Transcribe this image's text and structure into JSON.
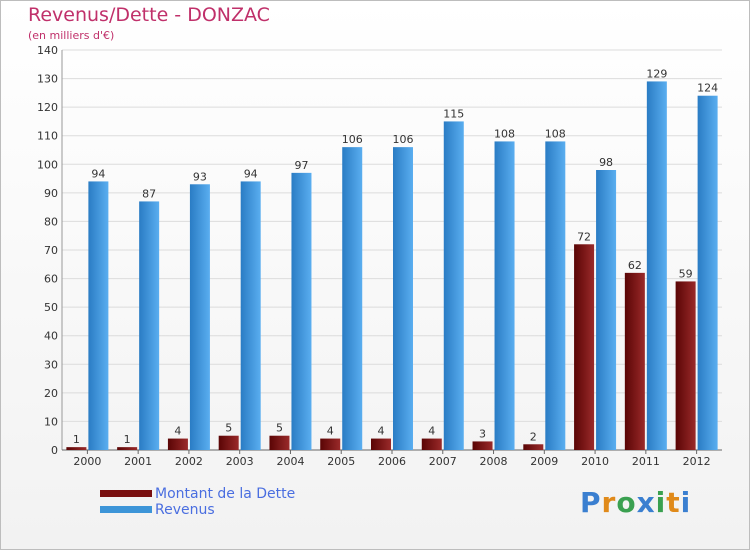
{
  "title": "Revenus/Dette - DONZAC",
  "subtitle": "(en milliers d'€)",
  "legend": {
    "items": [
      {
        "label": "Montant de la Dette",
        "color": "#7a1010"
      },
      {
        "label": "Revenus",
        "color": "#3d95d8"
      }
    ]
  },
  "logo": {
    "text": "Proxiti",
    "letter_colors": [
      "#3a7fd0",
      "#e08a1a",
      "#3aa050",
      "#3a7fd0",
      "#3aa050",
      "#e08a1a",
      "#3a7fd0"
    ]
  },
  "chart_data": {
    "type": "bar",
    "categories": [
      "2000",
      "2001",
      "2002",
      "2003",
      "2004",
      "2005",
      "2006",
      "2007",
      "2008",
      "2009",
      "2010",
      "2011",
      "2012"
    ],
    "series": [
      {
        "name": "Montant de la Dette",
        "color": "#7a1010",
        "values": [
          1,
          1,
          4,
          5,
          5,
          4,
          4,
          4,
          3,
          2,
          72,
          62,
          59
        ]
      },
      {
        "name": "Revenus",
        "color": "#3d95d8",
        "values": [
          94,
          87,
          93,
          94,
          97,
          106,
          106,
          115,
          108,
          108,
          98,
          129,
          124
        ]
      }
    ],
    "ylim": [
      0,
      140
    ],
    "yticks": [
      0,
      10,
      20,
      30,
      40,
      50,
      60,
      70,
      80,
      90,
      100,
      110,
      120,
      130,
      140
    ],
    "grid": true,
    "legend_position": "bottom-left"
  }
}
